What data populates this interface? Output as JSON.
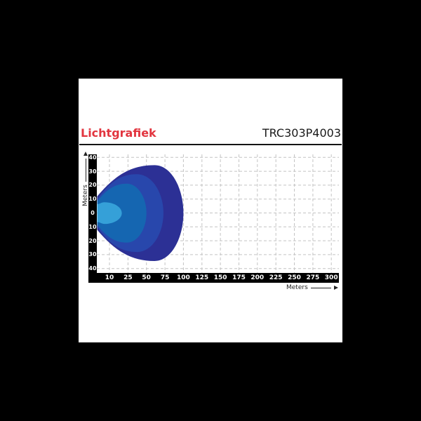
{
  "canvas": {
    "background": "#000000"
  },
  "panel": {
    "background": "#ffffff"
  },
  "header": {
    "title": "Lichtgrafiek",
    "title_color": "#e2353f",
    "product_code": "TRC303P4003"
  },
  "chart_data": {
    "type": "contour",
    "title": "Lichtgrafiek",
    "subtitle": "TRC303P4003",
    "x_axis": {
      "label": "Meters",
      "ticks": [
        "10",
        "25",
        "50",
        "75",
        "100",
        "125",
        "150",
        "175",
        "200",
        "225",
        "250",
        "275",
        "300"
      ],
      "range_m": [
        0,
        300
      ]
    },
    "y_axis": {
      "label": "Meters",
      "ticks": [
        "40",
        "30",
        "20",
        "10",
        "0",
        "10",
        "20",
        "30",
        "40"
      ],
      "range_m": [
        -40,
        40
      ]
    },
    "grid": {
      "visible": true,
      "style": "dashed",
      "color": "#c4c4c4"
    },
    "axis_bar_color": "#000000",
    "tick_text_color": "#ffffff",
    "contours": [
      {
        "name": "outer-beam",
        "color": "#2c3095",
        "reach_m": 100,
        "max_half_width_m": 34.5,
        "apex_at_m": 61,
        "start_half_width_m": 12
      },
      {
        "name": "mid-outer-beam",
        "color": "#2847ac",
        "reach_m": 73,
        "max_half_width_m": 28,
        "apex_at_m": 37,
        "start_half_width_m": 10
      },
      {
        "name": "mid-inner-beam",
        "color": "#1566b1",
        "reach_m": 50,
        "max_half_width_m": 21.2,
        "apex_at_m": 24,
        "start_half_width_m": 8.5
      },
      {
        "name": "core-beam",
        "color": "#35a0d8",
        "reach_m": 20,
        "max_half_width_m": 7.8,
        "apex_at_m": 6,
        "start_half_width_m": 6.5
      }
    ]
  }
}
